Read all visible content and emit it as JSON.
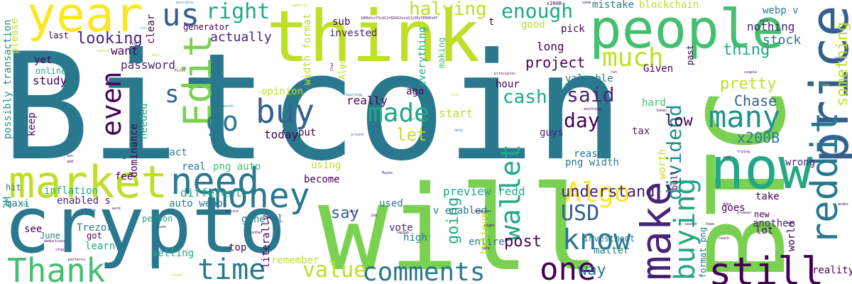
{
  "colors": {
    "background": "#ffffff",
    "palette": [
      "#440154",
      "#482475",
      "#414487",
      "#355f8d",
      "#2a788e",
      "#21918c",
      "#22a884",
      "#44bf70",
      "#7ad151",
      "#bddf26",
      "#fde725"
    ]
  },
  "words": [
    "Bitcoin",
    "BTC",
    "will",
    "crypto",
    "think",
    "people",
    "year",
    "market",
    "price",
    "now",
    "reddit",
    "need",
    "money",
    "make",
    "Edit",
    "still",
    "Thank",
    "comments",
    "time",
    "much",
    "buy",
    "many",
    "one",
    "made",
    "know",
    "wallet",
    "buying",
    "even",
    "Algo",
    "us",
    "right",
    "enough",
    "said",
    "dividend",
    "value",
    "USD",
    "halving",
    "go",
    "s",
    "day",
    "cash",
    "let",
    "understand",
    "say",
    "way",
    "going",
    "something",
    "thing",
    "pretty",
    "project",
    "Chase",
    "x200B",
    "low",
    "post",
    "blockchain",
    "mistake",
    "nothing",
    "stock",
    "looking",
    "password",
    "actually",
    "want",
    "study",
    "online",
    "yet",
    "keep",
    "Ledger",
    "fee",
    "fact",
    "real",
    "different",
    "inflation",
    "2M",
    "hit",
    "maxi",
    "enabled s",
    "see",
    "Trezor",
    "June",
    "learn",
    "got",
    "selling",
    "person",
    "general",
    "auto webp",
    "png auto",
    "png width",
    "preview redd",
    "v enabled",
    "used",
    "become",
    "using",
    "put",
    "today",
    "start",
    "really",
    "opinion",
    "ago",
    "hour",
    "long",
    "pick",
    "good",
    "everything",
    "invested",
    "sub",
    "t",
    "generator",
    "last",
    "please",
    "possibly transaction",
    "width format",
    "Algorand",
    "clear",
    "dominance",
    "needed",
    "valuable",
    "reason",
    "hard",
    "tax",
    "Given",
    "guys",
    "world",
    "wrong",
    "bull",
    "take",
    "worth",
    "goes",
    "another",
    "new",
    "lot",
    "reality",
    "format png",
    "vote",
    "high",
    "entire",
    "believe",
    "literally",
    "remember",
    "top",
    "matter",
    "investment",
    "webp v",
    "past",
    "making",
    "x200B",
    "1NHbUsvY5sQC2rB2bD2nzsDJySEyYEB6KoHT",
    "possible",
    "website",
    "seem",
    "hold",
    "wait",
    "cost",
    "won",
    "Chat",
    "learning",
    "rich",
    "principles",
    "couple",
    "anything",
    "Currently",
    "help",
    "token",
    "trying",
    "debt",
    "browser",
    "search",
    "hope",
    "reach",
    "laptop",
    "night",
    "computer",
    "Maybe",
    "around",
    "month",
    "son",
    "add",
    "holding",
    "work",
    "notice",
    "rather",
    "Job",
    "stop",
    "patterns",
    "deductions",
    "safe",
    "appreciate",
    "ready",
    "First",
    "tier",
    "ignore",
    "gold",
    "create",
    "idea",
    "modes",
    "live",
    "run",
    "sell",
    "Look"
  ]
}
